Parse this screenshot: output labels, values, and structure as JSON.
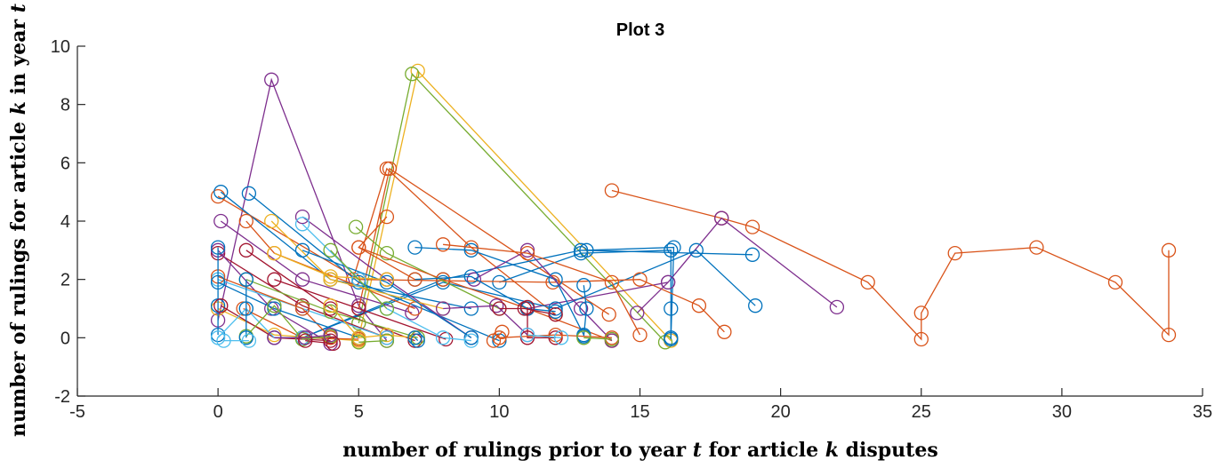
{
  "chart_data": {
    "type": "scatter",
    "title": "Plot 3",
    "xlabel": {
      "pre": "number of rulings prior to year ",
      "var1": "t",
      "mid": " for article ",
      "var2": "k",
      "post": " disputes"
    },
    "ylabel": {
      "pre": "number of rulings for article ",
      "var1": "k",
      "mid": " in year ",
      "var2": "t",
      "post": ""
    },
    "xlim": [
      -5,
      35
    ],
    "ylim": [
      -2,
      10
    ],
    "xticks": [
      -5,
      0,
      5,
      10,
      15,
      20,
      25,
      30,
      35
    ],
    "yticks": [
      -2,
      0,
      2,
      4,
      6,
      8,
      10
    ],
    "grid": false,
    "legend": "none",
    "colors": [
      "#0072BD",
      "#D95319",
      "#EDB120",
      "#7E2F8E",
      "#77AC30",
      "#4DBEEE",
      "#A2142F"
    ],
    "series": [
      {
        "color": "#D95319",
        "points": [
          [
            14,
            5.05
          ],
          [
            17.9,
            4.1
          ],
          [
            19,
            3.8
          ],
          [
            23.1,
            1.9
          ],
          [
            25,
            -0.05
          ],
          [
            25,
            0.85
          ],
          [
            26.2,
            2.9
          ],
          [
            29.1,
            3.1
          ],
          [
            31.9,
            1.9
          ],
          [
            33.8,
            0.1
          ],
          [
            33.8,
            3.0
          ]
        ]
      },
      {
        "color": "#EDB120",
        "points": [
          [
            5,
            0
          ],
          [
            7.1,
            9.15
          ],
          [
            16.1,
            -0.1
          ]
        ]
      },
      {
        "color": "#77AC30",
        "points": [
          [
            5,
            0.5
          ],
          [
            6.9,
            9.05
          ],
          [
            15.9,
            -0.15
          ]
        ]
      },
      {
        "color": "#7E2F8E",
        "points": [
          [
            0,
            0.6
          ],
          [
            1.9,
            8.85
          ],
          [
            5,
            1.1
          ],
          [
            6,
            -0.1
          ]
        ]
      },
      {
        "color": "#7E2F8E",
        "points": [
          [
            11,
            1.0
          ],
          [
            16,
            1.9
          ],
          [
            17.9,
            4.1
          ],
          [
            22,
            1.05
          ]
        ]
      },
      {
        "color": "#D95319",
        "points": [
          [
            4.8,
            2.0
          ],
          [
            6,
            5.8
          ],
          [
            9,
            3.1
          ],
          [
            12,
            0.8
          ]
        ]
      },
      {
        "color": "#D95319",
        "points": [
          [
            5,
            1.0
          ],
          [
            6.1,
            5.8
          ],
          [
            13.9,
            0.8
          ]
        ]
      },
      {
        "color": "#0072BD",
        "points": [
          [
            10,
            1.9
          ],
          [
            12.9,
            2.9
          ],
          [
            16.1,
            3.0
          ],
          [
            16.1,
            1.0
          ],
          [
            16.1,
            -0.05
          ]
        ]
      },
      {
        "color": "#0072BD",
        "points": [
          [
            3,
            0
          ],
          [
            8,
            2.0
          ],
          [
            12.9,
            3.0
          ],
          [
            19,
            2.85
          ]
        ]
      },
      {
        "color": "#0072BD",
        "points": [
          [
            13.1,
            3.0
          ],
          [
            16.2,
            3.1
          ],
          [
            16.1,
            0.0
          ]
        ]
      },
      {
        "color": "#0072BD",
        "points": [
          [
            3,
            0
          ],
          [
            8,
            1.9
          ],
          [
            12,
            1.0
          ],
          [
            17,
            3.0
          ],
          [
            19.1,
            1.1
          ]
        ]
      },
      {
        "color": "#D95319",
        "points": [
          [
            0,
            4.85
          ],
          [
            5,
            2.0
          ],
          [
            11.9,
            1.9
          ],
          [
            15,
            2.0
          ],
          [
            17.1,
            1.1
          ],
          [
            18,
            0.2
          ]
        ]
      },
      {
        "color": "#0072BD",
        "points": [
          [
            0.1,
            5.0
          ],
          [
            4,
            2.0
          ],
          [
            9,
            1.0
          ]
        ]
      },
      {
        "color": "#0072BD",
        "points": [
          [
            1.1,
            4.95
          ],
          [
            5,
            1.9
          ],
          [
            10,
            -0.1
          ]
        ]
      },
      {
        "color": "#7E2F8E",
        "points": [
          [
            0.1,
            4.0
          ],
          [
            3,
            2.0
          ],
          [
            6.9,
            0.85
          ]
        ]
      },
      {
        "color": "#D95319",
        "points": [
          [
            1,
            4.0
          ],
          [
            2,
            2.9
          ],
          [
            7,
            1.0
          ]
        ]
      },
      {
        "color": "#7E2F8E",
        "points": [
          [
            3,
            4.15
          ],
          [
            6,
            2.0
          ],
          [
            9,
            0.0
          ]
        ]
      },
      {
        "color": "#EDB120",
        "points": [
          [
            1.9,
            4.0
          ],
          [
            4,
            2.0
          ],
          [
            8,
            1.0
          ]
        ]
      },
      {
        "color": "#77AC30",
        "points": [
          [
            4.9,
            3.8
          ],
          [
            6,
            2.9
          ],
          [
            10,
            1.0
          ]
        ]
      },
      {
        "color": "#D95319",
        "points": [
          [
            5,
            3.1
          ],
          [
            8,
            2.0
          ],
          [
            11,
            1.0
          ],
          [
            14,
            -0.1
          ]
        ]
      },
      {
        "color": "#0072BD",
        "points": [
          [
            7,
            3.1
          ],
          [
            9,
            3.0
          ],
          [
            12,
            2.0
          ],
          [
            13,
            0.1
          ]
        ]
      },
      {
        "color": "#7E2F8E",
        "points": [
          [
            9.1,
            2.0
          ],
          [
            11,
            3.0
          ],
          [
            12.9,
            1.0
          ],
          [
            14,
            -0.1
          ]
        ]
      },
      {
        "color": "#D95319",
        "points": [
          [
            8,
            3.2
          ],
          [
            11,
            2.9
          ],
          [
            14,
            1.9
          ],
          [
            15,
            0.1
          ]
        ]
      },
      {
        "color": "#0072BD",
        "points": [
          [
            3,
            3.0
          ],
          [
            6,
            1.9
          ],
          [
            9,
            0.0
          ]
        ]
      },
      {
        "color": "#A2142F",
        "points": [
          [
            0,
            2.9
          ],
          [
            3,
            1.1
          ],
          [
            6,
            0.0
          ]
        ]
      },
      {
        "color": "#A2142F",
        "points": [
          [
            1,
            3.0
          ],
          [
            4,
            1.0
          ],
          [
            7,
            -0.1
          ]
        ]
      },
      {
        "color": "#A2142F",
        "points": [
          [
            2,
            2.0
          ],
          [
            5,
            1.0
          ],
          [
            8.1,
            -0.05
          ]
        ]
      },
      {
        "color": "#7E2F8E",
        "points": [
          [
            0,
            3.0
          ],
          [
            1.9,
            1.0
          ],
          [
            4,
            -0.2
          ]
        ]
      },
      {
        "color": "#4DBEEE",
        "points": [
          [
            0,
            2.0
          ],
          [
            3,
            1.0
          ],
          [
            6,
            0.0
          ]
        ]
      },
      {
        "color": "#77AC30",
        "points": [
          [
            1,
            2.0
          ],
          [
            4,
            0.9
          ],
          [
            7.1,
            0.0
          ]
        ]
      },
      {
        "color": "#EDB120",
        "points": [
          [
            0,
            1.0
          ],
          [
            2,
            0.1
          ],
          [
            5,
            -0.1
          ]
        ]
      },
      {
        "color": "#D95319",
        "points": [
          [
            0,
            2.1
          ],
          [
            3,
            1.0
          ],
          [
            4,
            0.0
          ]
        ]
      },
      {
        "color": "#D95319",
        "points": [
          [
            0.9,
            1.0
          ],
          [
            3,
            0.0
          ],
          [
            5,
            -0.05
          ]
        ]
      },
      {
        "color": "#0072BD",
        "points": [
          [
            0,
            3.1
          ],
          [
            0,
            1.1
          ],
          [
            0,
            0.1
          ]
        ]
      },
      {
        "color": "#0072BD",
        "points": [
          [
            0,
            1.9
          ],
          [
            2,
            1.0
          ],
          [
            5,
            0.0
          ]
        ]
      },
      {
        "color": "#A2142F",
        "points": [
          [
            0.1,
            1.1
          ],
          [
            2,
            0.0
          ],
          [
            4,
            -0.1
          ]
        ]
      },
      {
        "color": "#4DBEEE",
        "points": [
          [
            0,
            0.0
          ],
          [
            1,
            1.0
          ],
          [
            2,
            0.0
          ],
          [
            3,
            0.0
          ]
        ]
      },
      {
        "color": "#77AC30",
        "points": [
          [
            1,
            0.05
          ],
          [
            2,
            1.1
          ],
          [
            3,
            -0.05
          ],
          [
            4,
            0.05
          ]
        ]
      },
      {
        "color": "#EDB120",
        "points": [
          [
            4,
            1.1
          ],
          [
            5,
            0.0
          ],
          [
            6,
            0.1
          ],
          [
            7,
            0.0
          ]
        ]
      },
      {
        "color": "#4DBEEE",
        "points": [
          [
            6,
            1.0
          ],
          [
            8,
            0.0
          ],
          [
            9,
            -0.1
          ]
        ]
      },
      {
        "color": "#0072BD",
        "points": [
          [
            7,
            2.0
          ],
          [
            9,
            2.1
          ],
          [
            11,
            1.0
          ],
          [
            12,
            0.9
          ]
        ]
      },
      {
        "color": "#7E2F8E",
        "points": [
          [
            8,
            1.0
          ],
          [
            9.9,
            1.1
          ],
          [
            11,
            0.1
          ]
        ]
      },
      {
        "color": "#A2142F",
        "points": [
          [
            10,
            1.0
          ],
          [
            10.9,
            1.0
          ],
          [
            12,
            0.8
          ]
        ]
      },
      {
        "color": "#A2142F",
        "points": [
          [
            11,
            1.05
          ],
          [
            11,
            0.0
          ],
          [
            12,
            0.0
          ]
        ]
      },
      {
        "color": "#0072BD",
        "points": [
          [
            13,
            1.8
          ],
          [
            13.1,
            1.0
          ],
          [
            13,
            0.05
          ]
        ]
      },
      {
        "color": "#D95319",
        "points": [
          [
            10,
            0.0
          ],
          [
            12,
            0.1
          ],
          [
            14,
            0.0
          ]
        ]
      },
      {
        "color": "#4DBEEE",
        "points": [
          [
            11,
            0.1
          ],
          [
            12.2,
            0.0
          ]
        ]
      },
      {
        "color": "#77AC30",
        "points": [
          [
            13,
            0.0
          ],
          [
            14,
            -0.05
          ]
        ]
      },
      {
        "color": "#D95319",
        "points": [
          [
            9.8,
            -0.1
          ],
          [
            10.1,
            0.2
          ]
        ]
      },
      {
        "color": "#7E2F8E",
        "points": [
          [
            14.9,
            0.85
          ],
          [
            16,
            1.9
          ]
        ]
      },
      {
        "color": "#EDB120",
        "points": [
          [
            2,
            2.9
          ],
          [
            4,
            2.1
          ],
          [
            6,
            2.0
          ]
        ]
      },
      {
        "color": "#4DBEEE",
        "points": [
          [
            3,
            3.9
          ],
          [
            5,
            2.0
          ]
        ]
      },
      {
        "color": "#77AC30",
        "points": [
          [
            4,
            3.0
          ],
          [
            6,
            1.0
          ]
        ]
      },
      {
        "color": "#D95319",
        "points": [
          [
            6,
            4.15
          ],
          [
            5,
            3.1
          ],
          [
            7,
            2.0
          ]
        ]
      },
      {
        "color": "#0072BD",
        "points": [
          [
            1,
            2.0
          ],
          [
            1,
            1.0
          ],
          [
            1,
            0.0
          ]
        ]
      },
      {
        "color": "#7E2F8E",
        "points": [
          [
            2,
            0.0
          ],
          [
            3.1,
            0.0
          ],
          [
            4,
            0.1
          ]
        ]
      },
      {
        "color": "#A2142F",
        "points": [
          [
            3.1,
            -0.1
          ],
          [
            4.1,
            -0.2
          ]
        ]
      },
      {
        "color": "#77AC30",
        "points": [
          [
            5,
            -0.15
          ],
          [
            6,
            -0.1
          ]
        ]
      },
      {
        "color": "#0072BD",
        "points": [
          [
            7,
            0.0
          ],
          [
            7.1,
            -0.1
          ]
        ]
      },
      {
        "color": "#4DBEEE",
        "points": [
          [
            0.2,
            -0.1
          ],
          [
            1.1,
            -0.1
          ]
        ]
      }
    ]
  }
}
